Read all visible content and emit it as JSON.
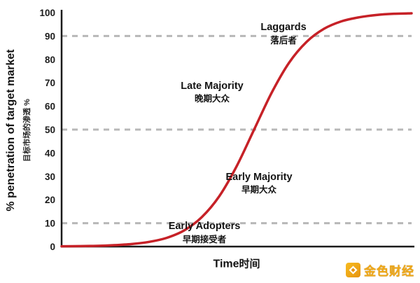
{
  "chart_data": {
    "type": "line",
    "title": "",
    "xlabel_en": "Time",
    "xlabel_zh": "时间",
    "ylabel_en": "% penetration of target market",
    "ylabel_zh": "目标市场的渗透 %",
    "ylim": [
      0,
      100
    ],
    "yticks": [
      0,
      10,
      20,
      30,
      40,
      50,
      60,
      70,
      80,
      90,
      100
    ],
    "dashed_gridlines": [
      10,
      50,
      90
    ],
    "line_color": "#c62127",
    "gridline_color": "#b8b8b8",
    "axis_color": "#1a1a1a",
    "grid": "dashed horizontal at 10/50/90 only",
    "legend": "none",
    "series": [
      {
        "name": "adoption-s-curve",
        "x": [
          0,
          5,
          10,
          15,
          20,
          25,
          30,
          35,
          40,
          45,
          50,
          55,
          60,
          65,
          70,
          75,
          80,
          85,
          90,
          95,
          100
        ],
        "y": [
          0.1,
          0.2,
          0.3,
          0.6,
          1.1,
          2.0,
          3.7,
          6.9,
          12.5,
          21.4,
          34.3,
          50,
          65.7,
          78.6,
          87.5,
          93.1,
          96.3,
          98.0,
          99.0,
          99.5,
          99.7
        ]
      }
    ],
    "annotations": [
      {
        "en": "Laggards",
        "zh": "落后者",
        "x": 63.4,
        "y": 91
      },
      {
        "en": "Late Majority",
        "zh": "晚期大众",
        "x": 43.0,
        "y": 66
      },
      {
        "en": "Early Majority",
        "zh": "早期大众",
        "x": 56.4,
        "y": 27
      },
      {
        "en": "Early Adopters",
        "zh": "早期接受者",
        "x": 40.8,
        "y": 6
      }
    ]
  },
  "watermark": {
    "text": "金色财经"
  }
}
